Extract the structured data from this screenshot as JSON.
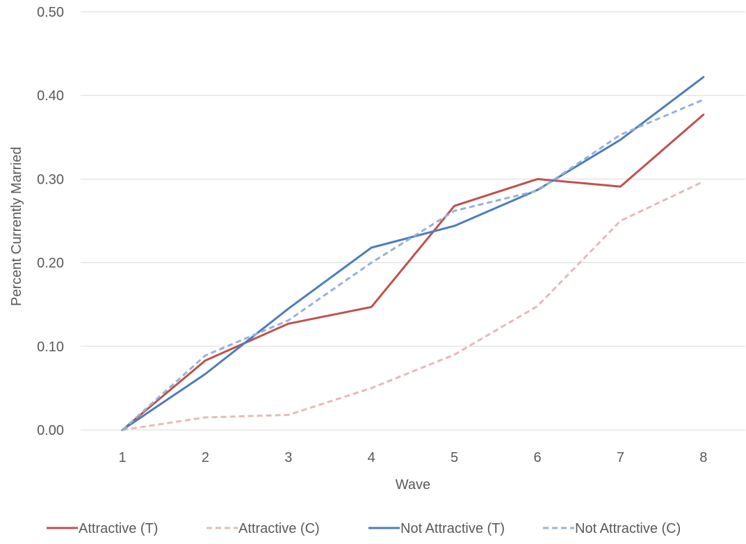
{
  "chart_data": {
    "type": "line",
    "categories": [
      "1",
      "2",
      "3",
      "4",
      "5",
      "6",
      "7",
      "8"
    ],
    "xlabel": "Wave",
    "ylabel": "Percent Currently Married",
    "ylim": [
      0,
      0.5
    ],
    "yticks": [
      "0.00",
      "0.10",
      "0.20",
      "0.30",
      "0.40",
      "0.50"
    ],
    "grid": "horizontal",
    "legend_position": "bottom",
    "series": [
      {
        "name": "Attractive (T)",
        "color": "#c0504d",
        "style": "solid",
        "values": [
          0.0,
          0.083,
          0.127,
          0.147,
          0.268,
          0.3,
          0.291,
          0.377
        ]
      },
      {
        "name": "Attractive (C)",
        "color": "#e6b9b8",
        "style": "dashed",
        "values": [
          0.0,
          0.015,
          0.018,
          0.05,
          0.09,
          0.148,
          0.25,
          0.297
        ]
      },
      {
        "name": "Not Attractive (T)",
        "color": "#4a7ebb",
        "style": "solid",
        "values": [
          0.0,
          0.067,
          0.145,
          0.218,
          0.244,
          0.287,
          0.347,
          0.422
        ]
      },
      {
        "name": "Not Attractive (C)",
        "color": "#95b3d7",
        "style": "dashed",
        "values": [
          0.0,
          0.089,
          0.131,
          0.2,
          0.262,
          0.286,
          0.353,
          0.395
        ]
      }
    ]
  }
}
